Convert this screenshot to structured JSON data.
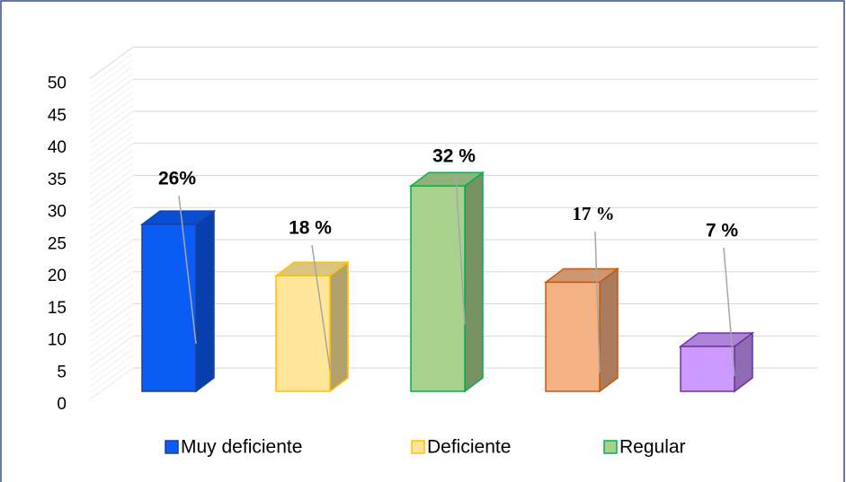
{
  "chart_data": {
    "type": "bar3d",
    "series": [
      {
        "name": "Muy deficiente",
        "color": "#0a5cf5",
        "edgecolor": "#1f3f9f",
        "values": [
          26
        ],
        "value_labels": [
          "26%"
        ]
      },
      {
        "name": "Deficiente",
        "color": "#ffe699",
        "edgecolor": "#ffc000",
        "values": [
          18
        ],
        "value_labels": [
          "18 %"
        ]
      },
      {
        "name": "Regular",
        "color": "#a9d18e",
        "edgecolor": "#00b050",
        "values": [
          32
        ],
        "value_labels": [
          "32 %"
        ]
      },
      {
        "color": "#f4b183",
        "edgecolor": "#c55a11",
        "values": [
          17
        ],
        "value_labels": [
          "17 %"
        ]
      },
      {
        "color": "#cc99ff",
        "edgecolor": "#7030a0",
        "values": [
          7
        ],
        "value_labels": [
          "7 %"
        ]
      }
    ],
    "ylim": [
      0,
      50
    ],
    "yticks": [
      0,
      5,
      10,
      15,
      20,
      25,
      30,
      35,
      40,
      45,
      50
    ],
    "grid": true,
    "legend": "bottom"
  }
}
